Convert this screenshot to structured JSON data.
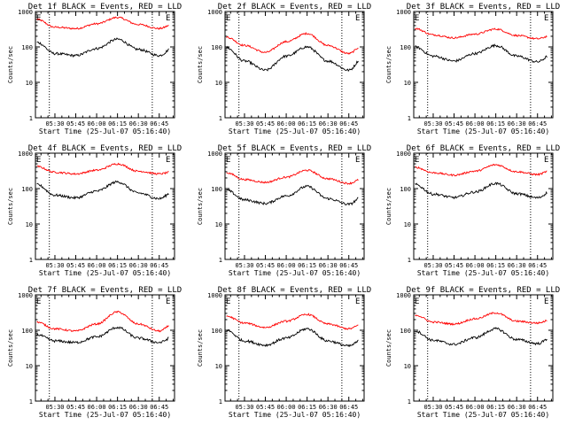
{
  "chart_data": [
    {
      "type": "line",
      "title": "Det 1f BLACK = Events, RED = LLD",
      "ylabel": "Counts/sec",
      "xlabel": "Start Time (25-Jul-07 05:16:40)",
      "x_ticks": [
        "05:30",
        "05:45",
        "06:00",
        "06:15",
        "06:30",
        "06:45"
      ],
      "y_ticks": [
        "1",
        "10",
        "100",
        "1000"
      ],
      "ylim": [
        1,
        1000
      ],
      "yscale": "log",
      "markers": [
        {
          "label": "E",
          "time": "05:16"
        },
        {
          "label": "E",
          "time": "06:49"
        }
      ],
      "series": [
        {
          "color": "#ff0000",
          "x": [
            "05:17",
            "05:30",
            "05:45",
            "06:00",
            "06:15",
            "06:30",
            "06:45",
            "06:55"
          ],
          "y": [
            600,
            360,
            330,
            450,
            680,
            430,
            330,
            430
          ]
        },
        {
          "color": "#000000",
          "x": [
            "05:17",
            "05:30",
            "05:45",
            "06:00",
            "06:15",
            "06:30",
            "06:45",
            "06:55"
          ],
          "y": [
            135,
            65,
            57,
            90,
            165,
            85,
            57,
            95
          ]
        }
      ]
    },
    {
      "type": "line",
      "title": "Det 2f BLACK = Events, RED = LLD",
      "ylabel": "Counts/sec",
      "xlabel": "Start Time (25-Jul-07 05:16:40)",
      "x_ticks": [
        "05:30",
        "05:45",
        "06:00",
        "06:15",
        "06:30",
        "06:45"
      ],
      "y_ticks": [
        "1",
        "10",
        "100",
        "1000"
      ],
      "ylim": [
        1,
        1000
      ],
      "yscale": "log",
      "markers": [
        {
          "label": "E",
          "time": "05:16"
        },
        {
          "label": "E",
          "time": "06:49"
        }
      ],
      "series": [
        {
          "color": "#ff0000",
          "x": [
            "05:17",
            "05:30",
            "05:45",
            "06:00",
            "06:15",
            "06:30",
            "06:45",
            "06:55"
          ],
          "y": [
            190,
            110,
            70,
            140,
            240,
            110,
            65,
            110
          ]
        },
        {
          "color": "#000000",
          "x": [
            "05:17",
            "05:30",
            "05:45",
            "06:00",
            "06:15",
            "06:30",
            "06:45",
            "06:55"
          ],
          "y": [
            95,
            40,
            22,
            55,
            100,
            40,
            22,
            50
          ]
        }
      ]
    },
    {
      "type": "line",
      "title": "Det 3f BLACK = Events, RED = LLD",
      "ylabel": "Counts/sec",
      "xlabel": "Start Time (25-Jul-07 05:16:40)",
      "x_ticks": [
        "05:30",
        "05:45",
        "06:00",
        "06:15",
        "06:30",
        "06:45"
      ],
      "y_ticks": [
        "1",
        "10",
        "100",
        "1000"
      ],
      "ylim": [
        1,
        1000
      ],
      "yscale": "log",
      "markers": [
        {
          "label": "E",
          "time": "05:16"
        },
        {
          "label": "E",
          "time": "06:49"
        }
      ],
      "series": [
        {
          "color": "#ff0000",
          "x": [
            "05:17",
            "05:30",
            "05:45",
            "06:00",
            "06:15",
            "06:30",
            "06:45",
            "06:55"
          ],
          "y": [
            330,
            220,
            180,
            230,
            320,
            210,
            170,
            210
          ]
        },
        {
          "color": "#000000",
          "x": [
            "05:17",
            "05:30",
            "05:45",
            "06:00",
            "06:15",
            "06:30",
            "06:45",
            "06:55"
          ],
          "y": [
            100,
            55,
            40,
            65,
            110,
            55,
            38,
            60
          ]
        }
      ]
    },
    {
      "type": "line",
      "title": "Det 4f BLACK = Events, RED = LLD",
      "ylabel": "Counts/sec",
      "xlabel": "Start Time (25-Jul-07 05:16:40)",
      "x_ticks": [
        "05:30",
        "05:45",
        "06:00",
        "06:15",
        "06:30",
        "06:45"
      ],
      "y_ticks": [
        "1",
        "10",
        "100",
        "1000"
      ],
      "ylim": [
        1,
        1000
      ],
      "yscale": "log",
      "markers": [
        {
          "label": "E",
          "time": "05:16"
        },
        {
          "label": "E",
          "time": "06:49"
        }
      ],
      "series": [
        {
          "color": "#ff0000",
          "x": [
            "05:17",
            "05:30",
            "05:45",
            "06:00",
            "06:15",
            "06:30",
            "06:45",
            "06:55"
          ],
          "y": [
            420,
            290,
            260,
            330,
            500,
            310,
            260,
            300
          ]
        },
        {
          "color": "#000000",
          "x": [
            "05:17",
            "05:30",
            "05:45",
            "06:00",
            "06:15",
            "06:30",
            "06:45",
            "06:55"
          ],
          "y": [
            130,
            65,
            55,
            85,
            155,
            75,
            52,
            80
          ]
        }
      ]
    },
    {
      "type": "line",
      "title": "Det 5f BLACK = Events, RED = LLD",
      "ylabel": "Counts/sec",
      "xlabel": "Start Time (25-Jul-07 05:16:40)",
      "x_ticks": [
        "05:30",
        "05:45",
        "06:00",
        "06:15",
        "06:30",
        "06:45"
      ],
      "y_ticks": [
        "1",
        "10",
        "100",
        "1000"
      ],
      "ylim": [
        1,
        1000
      ],
      "yscale": "log",
      "markers": [
        {
          "label": "E",
          "time": "05:16"
        },
        {
          "label": "E",
          "time": "06:49"
        }
      ],
      "series": [
        {
          "color": "#ff0000",
          "x": [
            "05:17",
            "05:30",
            "05:45",
            "06:00",
            "06:15",
            "06:30",
            "06:45",
            "06:55"
          ],
          "y": [
            280,
            180,
            150,
            210,
            330,
            190,
            140,
            190
          ]
        },
        {
          "color": "#000000",
          "x": [
            "05:17",
            "05:30",
            "05:45",
            "06:00",
            "06:15",
            "06:30",
            "06:45",
            "06:55"
          ],
          "y": [
            90,
            48,
            38,
            62,
            115,
            52,
            36,
            60
          ]
        }
      ]
    },
    {
      "type": "line",
      "title": "Det 6f BLACK = Events, RED = LLD",
      "ylabel": "Counts/sec",
      "xlabel": "Start Time (25-Jul-07 05:16:40)",
      "x_ticks": [
        "05:30",
        "05:45",
        "06:00",
        "06:15",
        "06:30",
        "06:45"
      ],
      "y_ticks": [
        "1",
        "10",
        "100",
        "1000"
      ],
      "ylim": [
        1,
        1000
      ],
      "yscale": "log",
      "markers": [
        {
          "label": "E",
          "time": "05:16"
        },
        {
          "label": "E",
          "time": "06:49"
        }
      ],
      "series": [
        {
          "color": "#ff0000",
          "x": [
            "05:17",
            "05:30",
            "05:45",
            "06:00",
            "06:15",
            "06:30",
            "06:45",
            "06:55"
          ],
          "y": [
            400,
            280,
            240,
            310,
            470,
            300,
            250,
            330
          ]
        },
        {
          "color": "#000000",
          "x": [
            "05:17",
            "05:30",
            "05:45",
            "06:00",
            "06:15",
            "06:30",
            "06:45",
            "06:55"
          ],
          "y": [
            130,
            70,
            56,
            80,
            140,
            72,
            55,
            85
          ]
        }
      ]
    },
    {
      "type": "line",
      "title": "Det 7f BLACK = Events, RED = LLD",
      "ylabel": "Counts/sec",
      "xlabel": "Start Time (25-Jul-07 05:16:40)",
      "x_ticks": [
        "05:30",
        "05:45",
        "06:00",
        "06:15",
        "06:30",
        "06:45"
      ],
      "y_ticks": [
        "1",
        "10",
        "100",
        "1000"
      ],
      "ylim": [
        1,
        1000
      ],
      "yscale": "log",
      "markers": [
        {
          "label": "E",
          "time": "05:16"
        },
        {
          "label": "E",
          "time": "06:49"
        }
      ],
      "series": [
        {
          "color": "#ff0000",
          "x": [
            "05:17",
            "05:30",
            "05:45",
            "06:00",
            "06:15",
            "06:30",
            "06:45",
            "06:55"
          ],
          "y": [
            170,
            110,
            95,
            150,
            330,
            150,
            95,
            150
          ]
        },
        {
          "color": "#000000",
          "x": [
            "05:17",
            "05:30",
            "05:45",
            "06:00",
            "06:15",
            "06:30",
            "06:45",
            "06:55"
          ],
          "y": [
            75,
            50,
            45,
            65,
            120,
            60,
            45,
            65
          ]
        }
      ]
    },
    {
      "type": "line",
      "title": "Det 8f BLACK = Events, RED = LLD",
      "ylabel": "Counts/sec",
      "xlabel": "Start Time (25-Jul-07 05:16:40)",
      "x_ticks": [
        "05:30",
        "05:45",
        "06:00",
        "06:15",
        "06:30",
        "06:45"
      ],
      "y_ticks": [
        "1",
        "10",
        "100",
        "1000"
      ],
      "ylim": [
        1,
        1000
      ],
      "yscale": "log",
      "markers": [
        {
          "label": "E",
          "time": "05:16"
        },
        {
          "label": "E",
          "time": "06:49"
        }
      ],
      "series": [
        {
          "color": "#ff0000",
          "x": [
            "05:17",
            "05:30",
            "05:45",
            "06:00",
            "06:15",
            "06:30",
            "06:45",
            "06:55"
          ],
          "y": [
            250,
            160,
            120,
            180,
            280,
            150,
            110,
            150
          ]
        },
        {
          "color": "#000000",
          "x": [
            "05:17",
            "05:30",
            "05:45",
            "06:00",
            "06:15",
            "06:30",
            "06:45",
            "06:55"
          ],
          "y": [
            100,
            50,
            38,
            60,
            110,
            50,
            36,
            55
          ]
        }
      ]
    },
    {
      "type": "line",
      "title": "Det 9f BLACK = Events, RED = LLD",
      "ylabel": "Counts/sec",
      "xlabel": "Start Time (25-Jul-07 05:16:40)",
      "x_ticks": [
        "05:30",
        "05:45",
        "06:00",
        "06:15",
        "06:30",
        "06:45"
      ],
      "y_ticks": [
        "1",
        "10",
        "100",
        "1000"
      ],
      "ylim": [
        1,
        1000
      ],
      "yscale": "log",
      "markers": [
        {
          "label": "E",
          "time": "05:16"
        },
        {
          "label": "E",
          "time": "06:49"
        }
      ],
      "series": [
        {
          "color": "#ff0000",
          "x": [
            "05:17",
            "05:30",
            "05:45",
            "06:00",
            "06:15",
            "06:30",
            "06:45",
            "06:55"
          ],
          "y": [
            270,
            170,
            150,
            210,
            310,
            180,
            160,
            200
          ]
        },
        {
          "color": "#000000",
          "x": [
            "05:17",
            "05:30",
            "05:45",
            "06:00",
            "06:15",
            "06:30",
            "06:45",
            "06:55"
          ],
          "y": [
            95,
            52,
            40,
            62,
            110,
            55,
            42,
            62
          ]
        }
      ]
    }
  ]
}
